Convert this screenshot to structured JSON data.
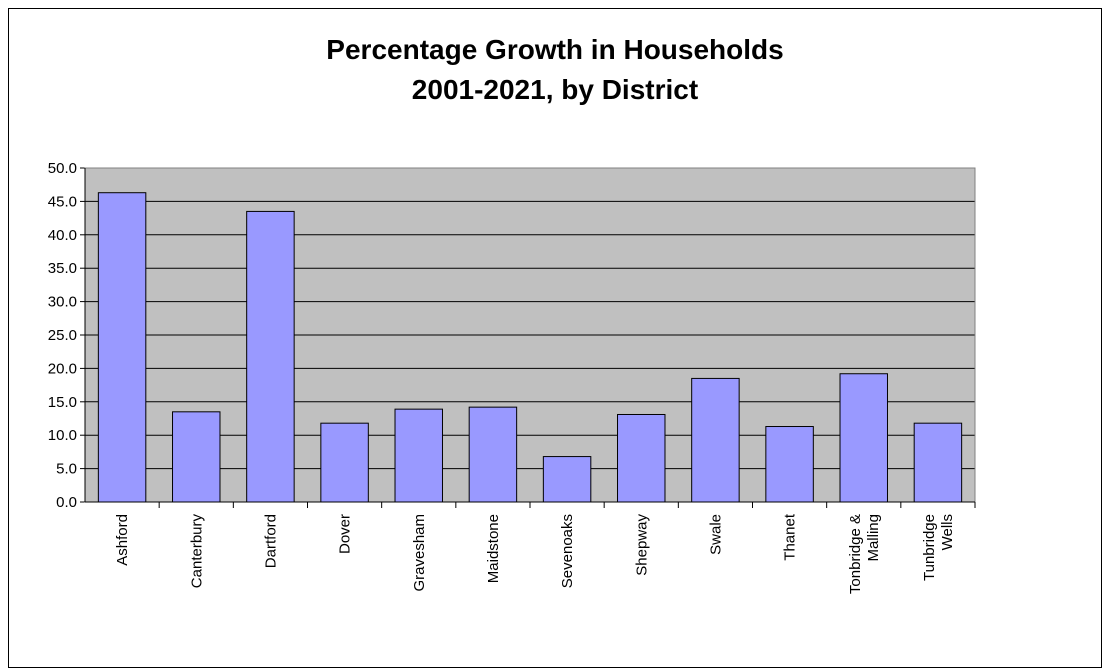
{
  "chart_data": {
    "type": "bar",
    "title_lines": [
      "Percentage Growth in Households",
      "2001-2021, by District"
    ],
    "categories": [
      "Ashford",
      "Canterbury",
      "Dartford",
      "Dover",
      "Gravesham",
      "Maidstone",
      "Sevenoaks",
      "Shepway",
      "Swale",
      "Thanet",
      "Tonbridge & Malling",
      "Tunbridge Wells"
    ],
    "category_lines": [
      [
        "Ashford"
      ],
      [
        "Canterbury"
      ],
      [
        "Dartford"
      ],
      [
        "Dover"
      ],
      [
        "Gravesham"
      ],
      [
        "Maidstone"
      ],
      [
        "Sevenoaks"
      ],
      [
        "Shepway"
      ],
      [
        "Swale"
      ],
      [
        "Thanet"
      ],
      [
        "Tonbridge &",
        "Malling"
      ],
      [
        "Tunbridge",
        "Wells"
      ]
    ],
    "values": [
      46.3,
      13.5,
      43.5,
      11.8,
      13.9,
      14.2,
      6.8,
      13.1,
      18.5,
      11.3,
      19.2,
      11.8
    ],
    "ylim": [
      0,
      50
    ],
    "yticks": [
      "0.0",
      "5.0",
      "10.0",
      "15.0",
      "20.0",
      "25.0",
      "30.0",
      "35.0",
      "40.0",
      "45.0",
      "50.0"
    ],
    "grid": true,
    "legend": "none",
    "colors": {
      "bar": "#9999ff",
      "plot_bg": "#c0c0c0",
      "gridline": "#000000"
    }
  }
}
